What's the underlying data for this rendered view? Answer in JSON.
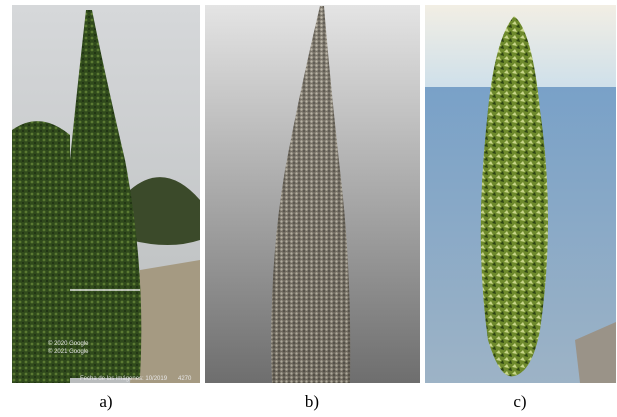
{
  "panels": [
    {
      "label": "a)",
      "overlay": [
        "© 2020 Google",
        "© 2021 Google",
        "Fecha de las imágenes: 10/2019",
        "4270"
      ]
    },
    {
      "label": "b)"
    },
    {
      "label": "c)"
    }
  ]
}
